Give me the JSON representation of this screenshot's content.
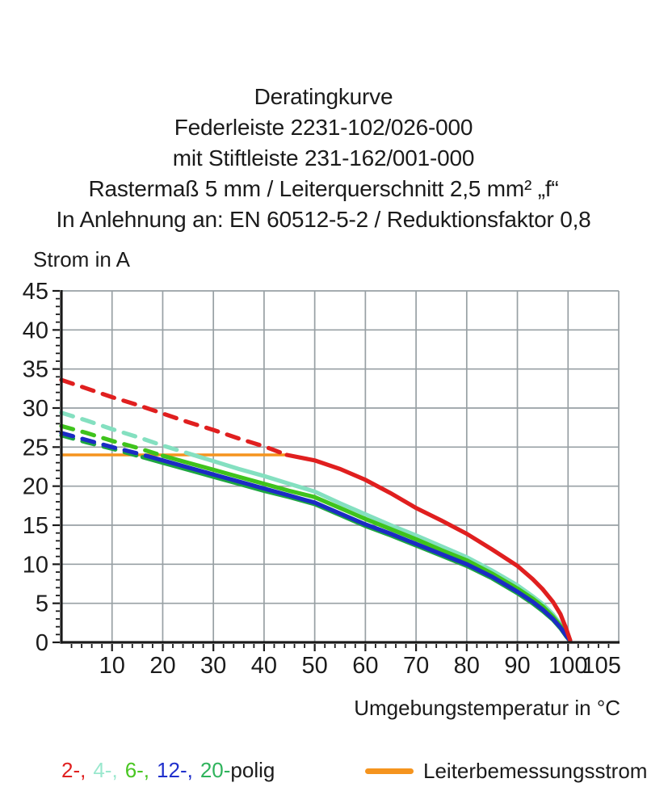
{
  "title_lines": [
    "Deratingkurve",
    "Federleiste 2231-102/026-000",
    "mit Stiftleiste 231-162/001-000",
    "Rastermaß 5 mm / Leiterquerschnitt 2,5 mm² „f“",
    "In Anlehnung an: EN 60512-5-2 / Reduktionsfaktor 0,8"
  ],
  "chart_data": {
    "type": "line",
    "title": "Deratingkurve",
    "xlabel": "Umgebungstemperatur in °C",
    "ylabel": "Strom in A",
    "xlim": [
      0,
      110
    ],
    "ylim": [
      0,
      45
    ],
    "x_tick_labels": [
      10,
      20,
      30,
      40,
      50,
      60,
      70,
      80,
      90,
      100,
      105
    ],
    "y_tick_labels": [
      0,
      5,
      10,
      15,
      20,
      25,
      30,
      35,
      40,
      45
    ],
    "x_gridlines": [
      10,
      20,
      30,
      40,
      50,
      60,
      70,
      80,
      90,
      100,
      110
    ],
    "y_gridlines": [
      5,
      10,
      15,
      20,
      25,
      30,
      35,
      40,
      45
    ],
    "x_minor_step": 2,
    "y_minor_step": 1,
    "grid_on": true,
    "grid_color": "#98A0A4",
    "axis_color": "#1A1A1A",
    "rated_line": {
      "label": "Leiterbemessungsstrom",
      "value": 24,
      "x_start": 0,
      "x_end": 44.5,
      "color": "#F5941E"
    },
    "series": [
      {
        "name": "2-polig",
        "color": "#E01F1F",
        "dash_until": 44.5,
        "points": [
          [
            0,
            33.6
          ],
          [
            5,
            32.5
          ],
          [
            10,
            31.4
          ],
          [
            15,
            30.4
          ],
          [
            20,
            29.3
          ],
          [
            25,
            28.2
          ],
          [
            30,
            27.2
          ],
          [
            35,
            26.1
          ],
          [
            40,
            25.1
          ],
          [
            44.5,
            24.0
          ],
          [
            50,
            23.3
          ],
          [
            55,
            22.2
          ],
          [
            60,
            20.8
          ],
          [
            65,
            19.1
          ],
          [
            70,
            17.2
          ],
          [
            75,
            15.6
          ],
          [
            80,
            13.9
          ],
          [
            85,
            11.9
          ],
          [
            90,
            9.8
          ],
          [
            93,
            8.1
          ],
          [
            95,
            6.8
          ],
          [
            97,
            5.2
          ],
          [
            98.5,
            3.6
          ],
          [
            99.6,
            1.8
          ],
          [
            100.4,
            0.3
          ]
        ]
      },
      {
        "name": "4-polig",
        "color": "#84E0C0",
        "dash_until": 26,
        "points": [
          [
            0,
            29.4
          ],
          [
            5,
            28.4
          ],
          [
            10,
            27.3
          ],
          [
            15,
            26.3
          ],
          [
            20,
            25.2
          ],
          [
            26,
            24.0
          ],
          [
            30,
            23.2
          ],
          [
            35,
            22.2
          ],
          [
            40,
            21.3
          ],
          [
            45,
            20.3
          ],
          [
            50,
            19.3
          ],
          [
            55,
            17.8
          ],
          [
            60,
            16.4
          ],
          [
            65,
            15.0
          ],
          [
            70,
            13.7
          ],
          [
            75,
            12.3
          ],
          [
            80,
            10.9
          ],
          [
            85,
            9.2
          ],
          [
            90,
            7.3
          ],
          [
            93,
            5.9
          ],
          [
            95,
            4.9
          ],
          [
            97,
            3.6
          ],
          [
            98.5,
            2.3
          ],
          [
            99.7,
            1.0
          ],
          [
            100.4,
            0.3
          ]
        ]
      },
      {
        "name": "6-polig",
        "color": "#3FC31C",
        "dash_until": 20,
        "points": [
          [
            0,
            27.7
          ],
          [
            5,
            26.8
          ],
          [
            10,
            25.8
          ],
          [
            15,
            24.9
          ],
          [
            20,
            23.9
          ],
          [
            25,
            23.0
          ],
          [
            30,
            22.1
          ],
          [
            35,
            21.2
          ],
          [
            40,
            20.3
          ],
          [
            45,
            19.4
          ],
          [
            50,
            18.6
          ],
          [
            55,
            17.2
          ],
          [
            60,
            15.8
          ],
          [
            65,
            14.5
          ],
          [
            70,
            13.2
          ],
          [
            75,
            11.8
          ],
          [
            80,
            10.5
          ],
          [
            85,
            8.8
          ],
          [
            90,
            6.9
          ],
          [
            93,
            5.6
          ],
          [
            95,
            4.6
          ],
          [
            97,
            3.3
          ],
          [
            98.5,
            2.1
          ],
          [
            99.7,
            0.9
          ],
          [
            100.4,
            0.25
          ]
        ]
      },
      {
        "name": "12-polig",
        "color": "#1B2BC4",
        "dash_until": 17,
        "points": [
          [
            0,
            26.8
          ],
          [
            5,
            25.9
          ],
          [
            10,
            25.0
          ],
          [
            15,
            24.2
          ],
          [
            20,
            23.3
          ],
          [
            25,
            22.4
          ],
          [
            30,
            21.5
          ],
          [
            35,
            20.6
          ],
          [
            40,
            19.7
          ],
          [
            45,
            18.8
          ],
          [
            50,
            17.9
          ],
          [
            55,
            16.5
          ],
          [
            60,
            15.1
          ],
          [
            65,
            13.9
          ],
          [
            70,
            12.6
          ],
          [
            75,
            11.3
          ],
          [
            80,
            10.0
          ],
          [
            85,
            8.4
          ],
          [
            90,
            6.5
          ],
          [
            93,
            5.2
          ],
          [
            95,
            4.2
          ],
          [
            97,
            3.0
          ],
          [
            98.5,
            1.9
          ],
          [
            99.7,
            0.8
          ],
          [
            100.4,
            0.2
          ]
        ]
      },
      {
        "name": "20-polig",
        "color": "#1EA641",
        "dash_until": 16,
        "points": [
          [
            0,
            26.5
          ],
          [
            5,
            25.6
          ],
          [
            10,
            24.8
          ],
          [
            15,
            23.9
          ],
          [
            20,
            23.0
          ],
          [
            25,
            22.1
          ],
          [
            30,
            21.2
          ],
          [
            35,
            20.3
          ],
          [
            40,
            19.4
          ],
          [
            45,
            18.6
          ],
          [
            50,
            17.7
          ],
          [
            55,
            16.3
          ],
          [
            60,
            14.9
          ],
          [
            65,
            13.7
          ],
          [
            70,
            12.4
          ],
          [
            75,
            11.1
          ],
          [
            80,
            9.8
          ],
          [
            85,
            8.2
          ],
          [
            90,
            6.3
          ],
          [
            93,
            5.0
          ],
          [
            95,
            4.0
          ],
          [
            97,
            2.9
          ],
          [
            98.5,
            1.8
          ],
          [
            99.7,
            0.7
          ],
          [
            100.4,
            0.18
          ]
        ]
      }
    ]
  },
  "legend": {
    "pole_items": [
      {
        "label": "2-,",
        "color": "#E02020"
      },
      {
        "label": "4-,",
        "color": "#9AE8CE"
      },
      {
        "label": "6-,",
        "color": "#49C622"
      },
      {
        "label": "12-,",
        "color": "#2030CC"
      },
      {
        "label": "20-",
        "color": "#2FB35C"
      }
    ],
    "suffix": "polig",
    "rated_label": "Leiterbemessungsstrom"
  }
}
